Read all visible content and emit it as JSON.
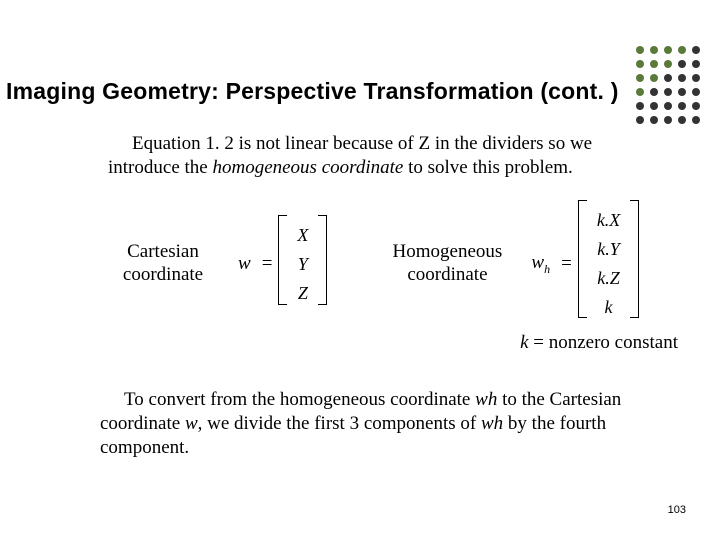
{
  "title": "Imaging Geometry: Perspective Transformation (cont. )",
  "intro": {
    "pre": "Equation 1. 2 is not linear because of Z in the dividers so we introduce the ",
    "term": "homogeneous coordinate",
    "post": " to solve this problem."
  },
  "cartesian_label_l1": "Cartesian",
  "cartesian_label_l2": "coordinate",
  "homog_label_l1": "Homogeneous",
  "homog_label_l2": "coordinate",
  "eq_w_var": "w",
  "eq_wh_var": "w",
  "eq_wh_sub": "h",
  "equals": "=",
  "vec_w": [
    "X",
    "Y",
    "Z"
  ],
  "vec_wh": [
    "k.X",
    "k.Y",
    "k.Z",
    "k"
  ],
  "k_note_var": "k",
  "k_note_rest": " = nonzero constant",
  "convert": {
    "a": "To convert from the homogeneous coordinate ",
    "wh": "w",
    "wh_sub": "h",
    "b": " to the Cartesian coordinate ",
    "w": "w",
    "c": ", we divide the first 3 components of ",
    "wh2": "w",
    "wh2_sub": "h",
    "d": " by the fourth component."
  },
  "page_number": "103",
  "dot_colors": [
    "#5a7a3a",
    "#5a7a3a",
    "#5a7a3a",
    "#5a7a3a",
    "#333333",
    "#5a7a3a",
    "#5a7a3a",
    "#5a7a3a",
    "#333333",
    "#333333",
    "#5a7a3a",
    "#5a7a3a",
    "#333333",
    "#333333",
    "#333333",
    "#5a7a3a",
    "#333333",
    "#333333",
    "#333333",
    "#333333",
    "#333333",
    "#333333",
    "#333333",
    "#333333",
    "#333333",
    "#333333",
    "#333333",
    "#333333",
    "#333333",
    "#333333"
  ]
}
